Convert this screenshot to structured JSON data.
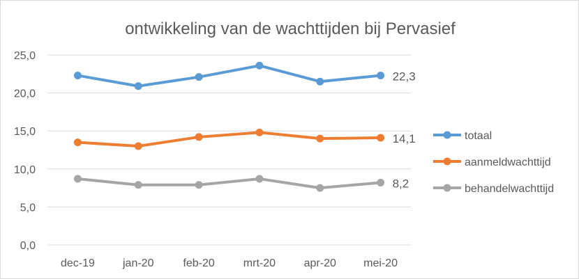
{
  "chart_data": {
    "type": "line",
    "title": "ontwikkeling van de wachttijden bij Pervasief",
    "categories": [
      "dec-19",
      "jan-20",
      "feb-20",
      "mrt-20",
      "apr-20",
      "mei-20"
    ],
    "ylim": [
      0,
      25
    ],
    "yticks": [
      "0,0",
      "5,0",
      "10,0",
      "15,0",
      "20,0",
      "25,0"
    ],
    "grid": true,
    "legend": "right",
    "series": [
      {
        "name": "totaal",
        "color": "#5B9BD5",
        "values": [
          22.3,
          20.9,
          22.1,
          23.6,
          21.5,
          22.3
        ],
        "end_label": "22,3"
      },
      {
        "name": "aanmeldwachttijd",
        "color": "#ED7D31",
        "values": [
          13.5,
          13.0,
          14.2,
          14.8,
          14.0,
          14.1
        ],
        "end_label": "14,1"
      },
      {
        "name": "behandelwachttijd",
        "color": "#A5A5A5",
        "values": [
          8.7,
          7.9,
          7.9,
          8.7,
          7.5,
          8.2
        ],
        "end_label": "8,2"
      }
    ]
  }
}
